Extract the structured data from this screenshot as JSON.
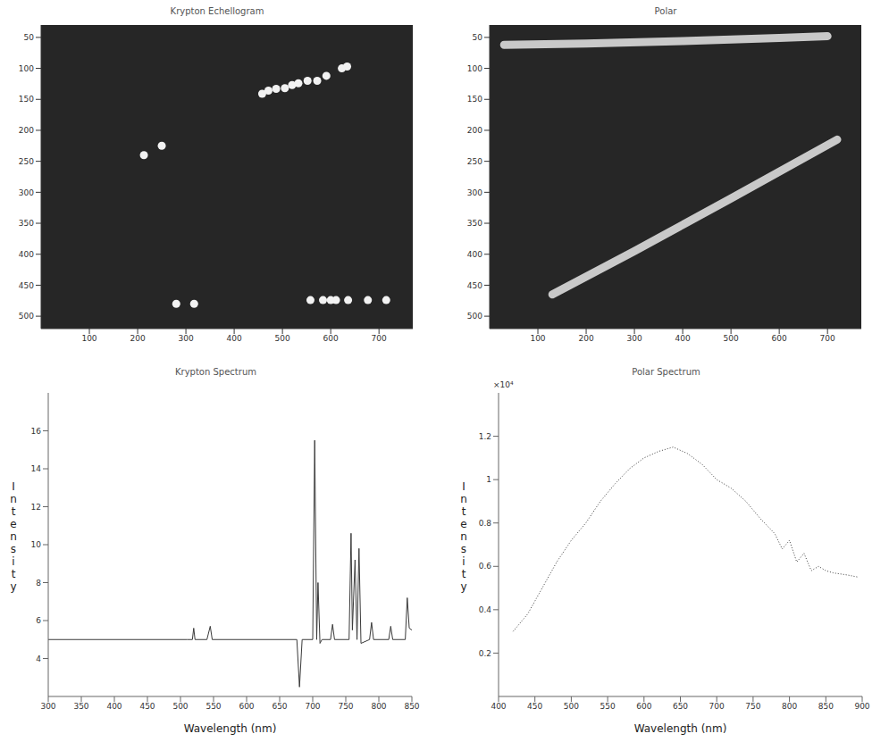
{
  "chart_data": [
    {
      "type": "scatter",
      "title": "Krypton Echellogram",
      "color": "#f2f2f2",
      "grid": false,
      "x": [
        213,
        250,
        458,
        471,
        487,
        505,
        520,
        533,
        552,
        572,
        591,
        623,
        634,
        280,
        317,
        558,
        584,
        600,
        611,
        636,
        677,
        715
      ],
      "y": [
        240,
        225,
        141,
        136,
        133,
        132,
        127,
        124,
        120,
        120,
        112,
        100,
        97,
        480,
        480,
        474,
        474,
        474,
        474,
        474,
        474,
        474
      ],
      "xlim": [
        0,
        770
      ],
      "xticks": [
        100,
        200,
        300,
        400,
        500,
        600,
        700
      ],
      "ylim": [
        520,
        30
      ],
      "yticks": [
        50,
        100,
        150,
        200,
        250,
        300,
        350,
        400,
        450,
        500
      ]
    },
    {
      "type": "line",
      "title": "Polar",
      "grid": false,
      "series": [
        {
          "color": "#e6e6e6",
          "x": [
            30,
            200,
            400,
            600,
            700
          ],
          "y": [
            62,
            60,
            56,
            51,
            48
          ]
        },
        {
          "color": "#e6e6e6",
          "x": [
            130,
            300,
            500,
            720
          ],
          "y": [
            465,
            395,
            310,
            215
          ]
        }
      ],
      "xlim": [
        0,
        770
      ],
      "xticks": [
        100,
        200,
        300,
        400,
        500,
        600,
        700
      ],
      "ylim": [
        520,
        30
      ],
      "yticks": [
        50,
        100,
        150,
        200,
        250,
        300,
        350,
        400,
        450,
        500
      ]
    },
    {
      "type": "line",
      "title": "Krypton Spectrum",
      "x_label": "Wavelength (nm)",
      "y_label": "Intensity",
      "color": "#3a3a3a",
      "line_style": "solid",
      "grid": false,
      "x": [
        300,
        510,
        518,
        520,
        522,
        540,
        545,
        548,
        650,
        676,
        680,
        684,
        700,
        703,
        706,
        708,
        711,
        714,
        727,
        730,
        733,
        755,
        758,
        760,
        764,
        767,
        770,
        773,
        786,
        789,
        792,
        815,
        818,
        821,
        840,
        843,
        846,
        850
      ],
      "values": [
        5,
        5,
        5,
        5.6,
        5,
        5,
        5.7,
        5,
        5,
        5,
        2.5,
        5,
        5,
        15.5,
        5,
        8,
        4.8,
        5,
        5,
        5.8,
        5,
        5,
        10.6,
        5.5,
        9.2,
        5,
        9.8,
        4.8,
        5,
        5.9,
        5,
        5,
        5.7,
        5,
        5,
        7.2,
        5.6,
        5.5
      ],
      "xlim": [
        300,
        850
      ],
      "xticks": [
        300,
        350,
        400,
        450,
        500,
        550,
        600,
        650,
        700,
        750,
        800,
        850
      ],
      "ylim": [
        2,
        18
      ],
      "yticks": [
        4,
        6,
        8,
        10,
        12,
        14,
        16
      ]
    },
    {
      "type": "line",
      "title": "Polar Spectrum",
      "x_label": "Wavelength (nm)",
      "y_label": "Intensity",
      "annotations": [
        "×10⁴"
      ],
      "color": "#3a3a3a",
      "line_style": "dotted",
      "grid": false,
      "x": [
        420,
        440,
        460,
        480,
        500,
        520,
        540,
        560,
        580,
        600,
        620,
        640,
        660,
        680,
        700,
        720,
        740,
        760,
        780,
        790,
        800,
        810,
        820,
        830,
        840,
        850,
        860,
        880,
        895
      ],
      "values": [
        0.3,
        0.38,
        0.5,
        0.62,
        0.72,
        0.8,
        0.9,
        0.98,
        1.05,
        1.1,
        1.13,
        1.15,
        1.12,
        1.07,
        1.0,
        0.96,
        0.9,
        0.82,
        0.75,
        0.68,
        0.72,
        0.62,
        0.66,
        0.58,
        0.6,
        0.58,
        0.57,
        0.56,
        0.55
      ],
      "xlim": [
        400,
        900
      ],
      "xticks": [
        400,
        450,
        500,
        550,
        600,
        650,
        700,
        750,
        800,
        850,
        900
      ],
      "ylim": [
        0,
        1.4
      ],
      "yticks": [
        0.2,
        0.4,
        0.6,
        0.8,
        1,
        1.2
      ]
    }
  ]
}
